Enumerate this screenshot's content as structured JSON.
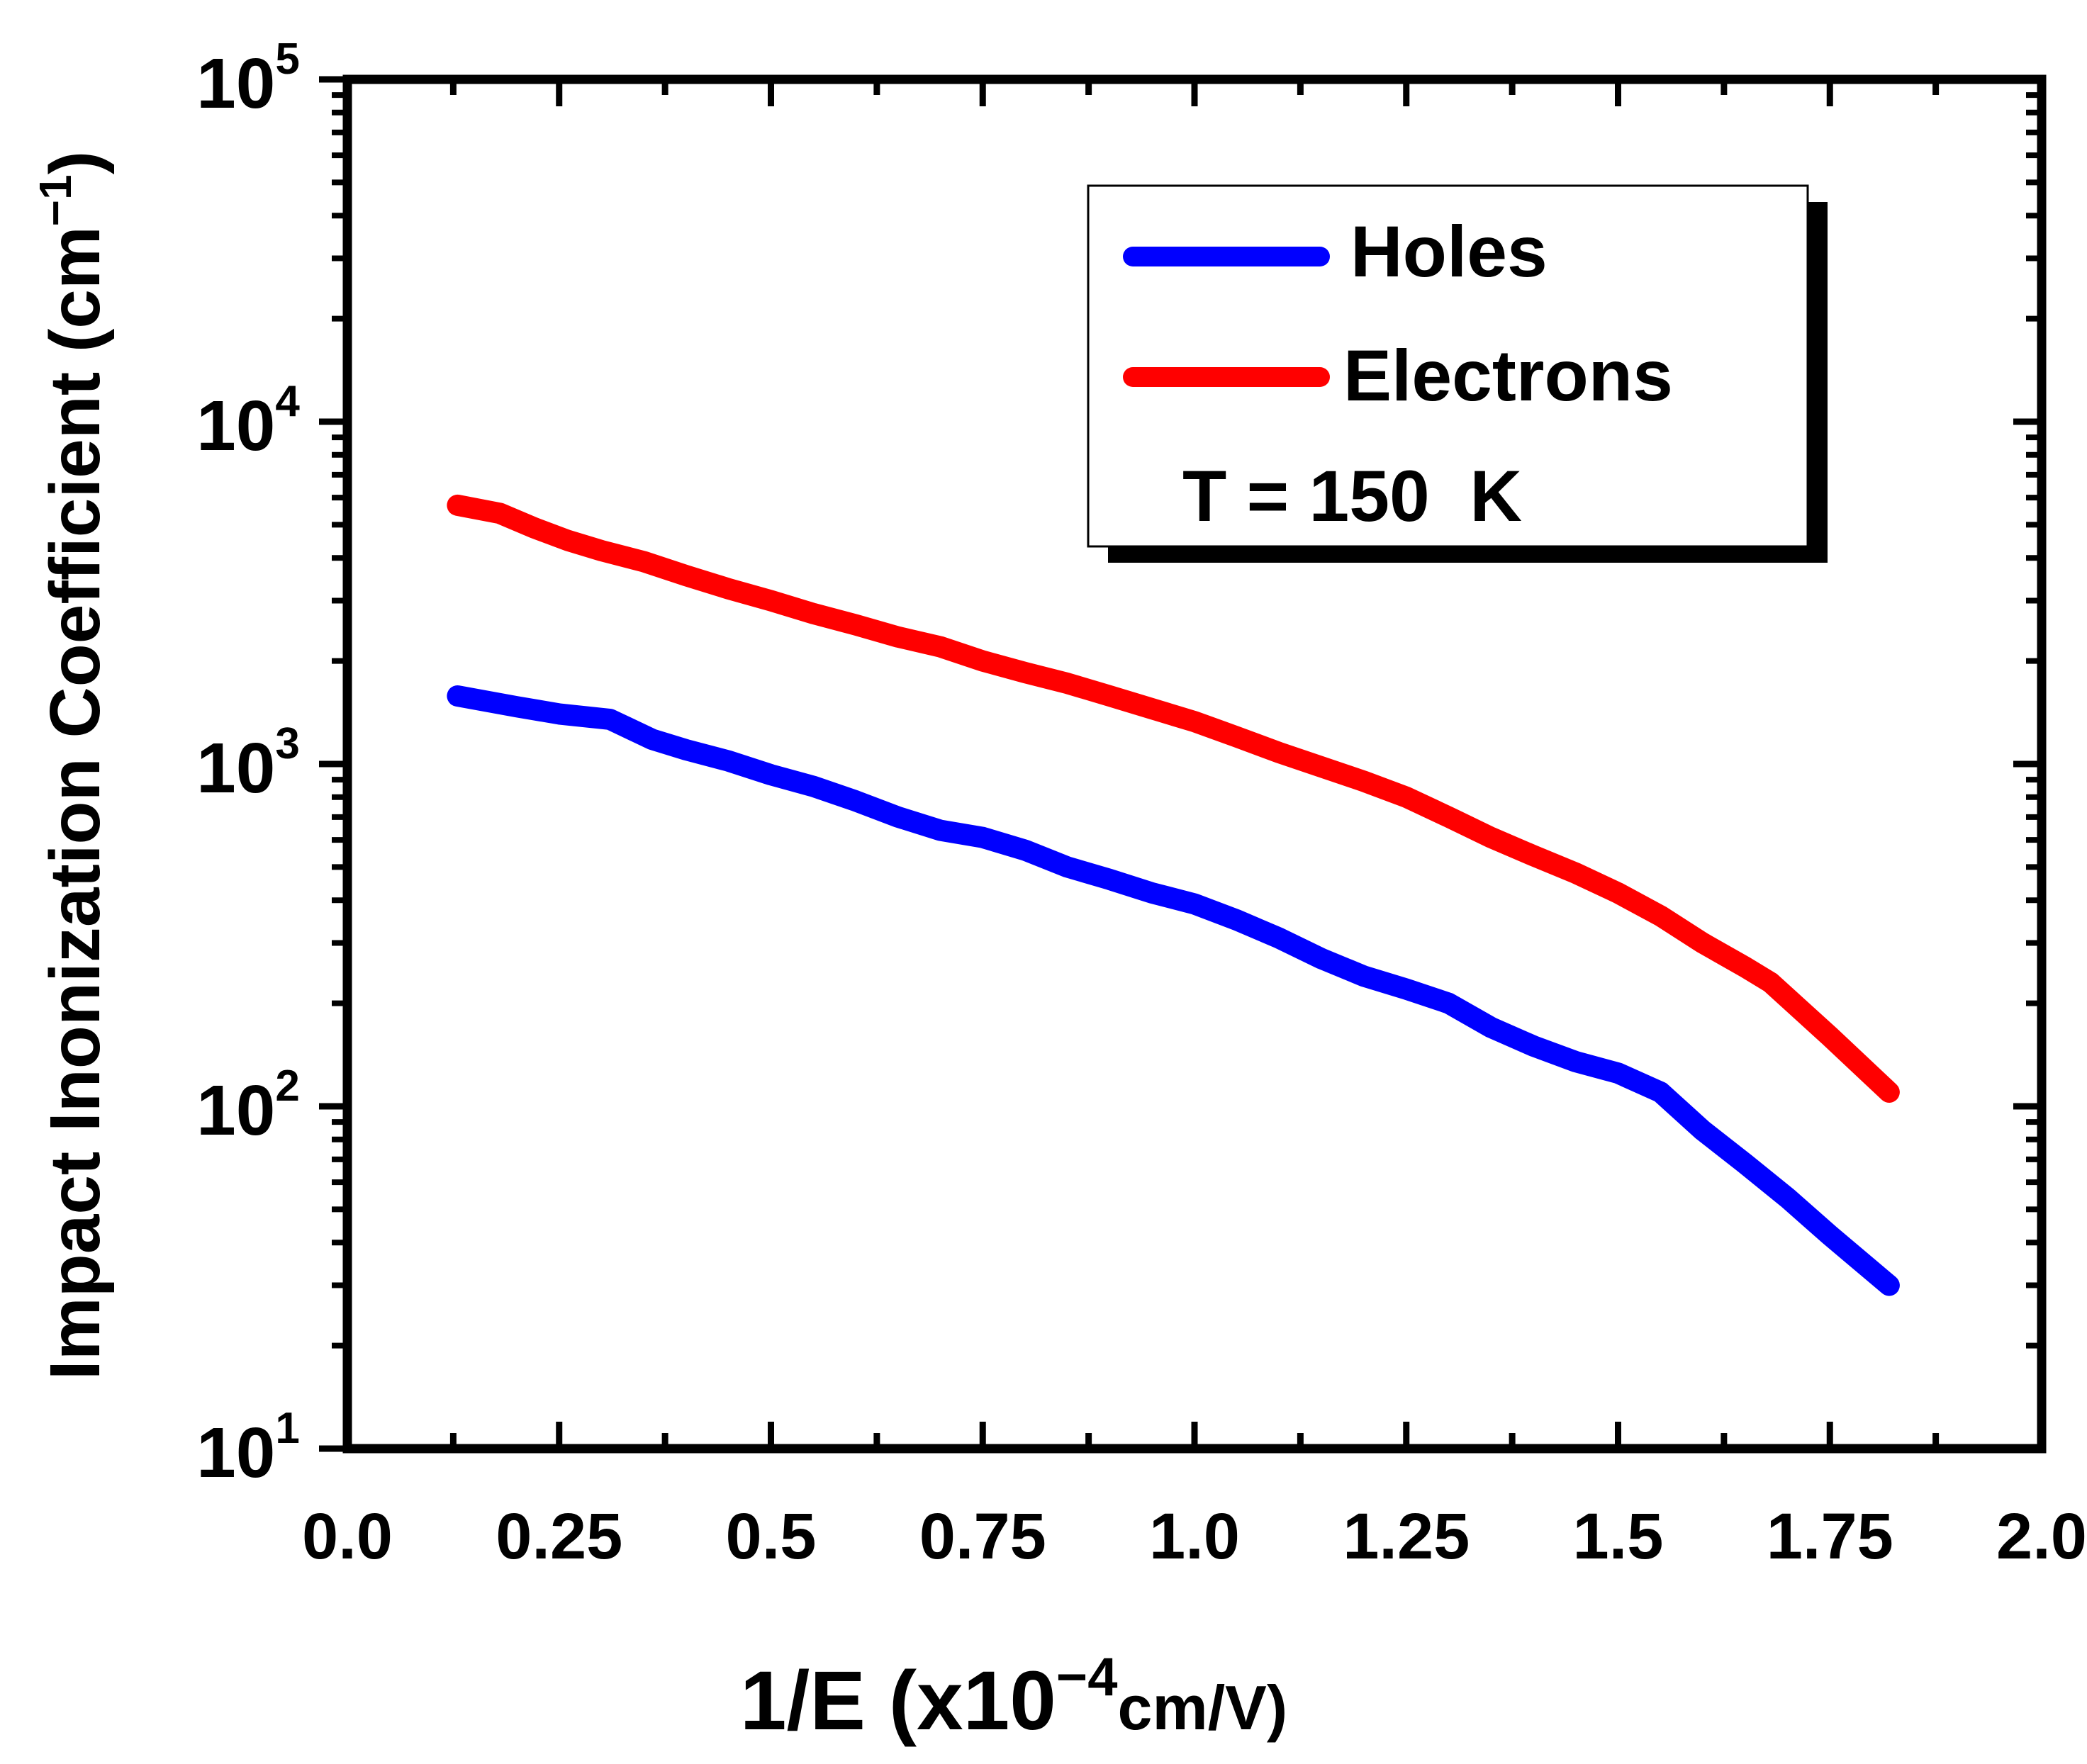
{
  "chart_data": {
    "type": "line",
    "title": "",
    "xlabel": "1/E (x10",
    "xlabel_exponent": "−4",
    "xlabel_unit": "cm/V)",
    "ylabel": "Impact Inonization Coefficient (cm",
    "ylabel_exponent": "−1",
    "ylabel_close": ")",
    "xlim": [
      0.0,
      2.0
    ],
    "ylim": [
      10,
      100000
    ],
    "yscale": "log",
    "x_tick_labels": [
      {
        "value": 0.0,
        "label": "0.0"
      },
      {
        "value": 0.25,
        "label": "0.25"
      },
      {
        "value": 0.5,
        "label": "0.5"
      },
      {
        "value": 0.75,
        "label": "0.75"
      },
      {
        "value": 1.0,
        "label": "1.0"
      },
      {
        "value": 1.25,
        "label": "1.25"
      },
      {
        "value": 1.5,
        "label": "1.5"
      },
      {
        "value": 1.75,
        "label": "1.75"
      },
      {
        "value": 2.0,
        "label": "2.0"
      }
    ],
    "y_tick_labels": [
      {
        "value": 10,
        "base": "10",
        "exp": "1"
      },
      {
        "value": 100,
        "base": "10",
        "exp": "2"
      },
      {
        "value": 1000,
        "base": "10",
        "exp": "3"
      },
      {
        "value": 10000,
        "base": "10",
        "exp": "4"
      },
      {
        "value": 100000,
        "base": "10",
        "exp": "5"
      }
    ],
    "legend_position": "top-right",
    "annotation": "T = 150  K",
    "series": [
      {
        "name": "Holes",
        "color": "#0000ff",
        "x": [
          0.13,
          0.2,
          0.25,
          0.31,
          0.36,
          0.4,
          0.45,
          0.5,
          0.55,
          0.6,
          0.65,
          0.7,
          0.75,
          0.8,
          0.85,
          0.9,
          0.95,
          1.0,
          1.05,
          1.1,
          1.15,
          1.2,
          1.25,
          1.3,
          1.35,
          1.4,
          1.45,
          1.5,
          1.55,
          1.6,
          1.65,
          1.7,
          1.75,
          1.82
        ],
        "y": [
          1580,
          1470,
          1400,
          1350,
          1180,
          1100,
          1020,
          930,
          860,
          780,
          700,
          640,
          610,
          560,
          500,
          460,
          420,
          390,
          350,
          310,
          270,
          240,
          220,
          200,
          170,
          150,
          135,
          125,
          110,
          85,
          68,
          54,
          42,
          30
        ]
      },
      {
        "name": "Electrons",
        "color": "#ff0000",
        "x": [
          0.13,
          0.18,
          0.22,
          0.26,
          0.3,
          0.35,
          0.4,
          0.45,
          0.5,
          0.55,
          0.6,
          0.65,
          0.7,
          0.75,
          0.8,
          0.85,
          0.9,
          0.95,
          1.0,
          1.05,
          1.1,
          1.15,
          1.2,
          1.25,
          1.3,
          1.35,
          1.4,
          1.45,
          1.5,
          1.55,
          1.6,
          1.65,
          1.68,
          1.75,
          1.82
        ],
        "y": [
          5700,
          5400,
          4900,
          4500,
          4200,
          3900,
          3550,
          3250,
          3000,
          2750,
          2550,
          2350,
          2200,
          2000,
          1850,
          1720,
          1580,
          1450,
          1330,
          1200,
          1080,
          980,
          890,
          800,
          700,
          610,
          540,
          480,
          420,
          360,
          300,
          255,
          230,
          160,
          110
        ]
      }
    ]
  }
}
